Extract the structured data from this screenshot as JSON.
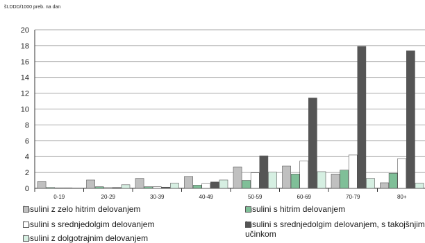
{
  "chart_data": {
    "type": "bar",
    "ylabel": "št.DDD/1000 preb. na dan",
    "xlabel": "",
    "title": "",
    "ylim": [
      0,
      20
    ],
    "yticks": [
      0,
      2,
      4,
      6,
      8,
      10,
      12,
      14,
      16,
      18,
      20
    ],
    "grid": true,
    "legend_position": "bottom",
    "categories": [
      "0-19",
      "20-29",
      "30-39",
      "40-49",
      "50-59",
      "60-69",
      "70-79",
      "80+"
    ],
    "series": [
      {
        "name": "Insulini z zelo hitrim delovanjem",
        "color": "#c0c0c0",
        "values": [
          0.85,
          1.05,
          1.25,
          1.5,
          2.7,
          2.8,
          1.8,
          0.7
        ]
      },
      {
        "name": "Insulini s hitrim delovanjem",
        "color": "#7fbf98",
        "values": [
          0.1,
          0.2,
          0.2,
          0.4,
          1.0,
          1.8,
          2.3,
          1.9
        ]
      },
      {
        "name": "Insulini s srednjedolgim delovanjem",
        "color": "#ffffff",
        "values": [
          0.05,
          0.1,
          0.2,
          0.6,
          1.95,
          3.45,
          4.2,
          3.75
        ]
      },
      {
        "name": "Insulini s srednjedolgim delovanjem,\ns takojšnjim učinkom",
        "color": "#555555",
        "values": [
          0.05,
          0.1,
          0.15,
          0.8,
          4.1,
          11.4,
          17.9,
          17.35
        ]
      },
      {
        "name": "Insulini z dolgotrajnim delovanjem",
        "color": "#d6efe2",
        "values": [
          0.0,
          0.45,
          0.65,
          1.05,
          2.05,
          2.1,
          1.25,
          0.65
        ]
      }
    ]
  }
}
